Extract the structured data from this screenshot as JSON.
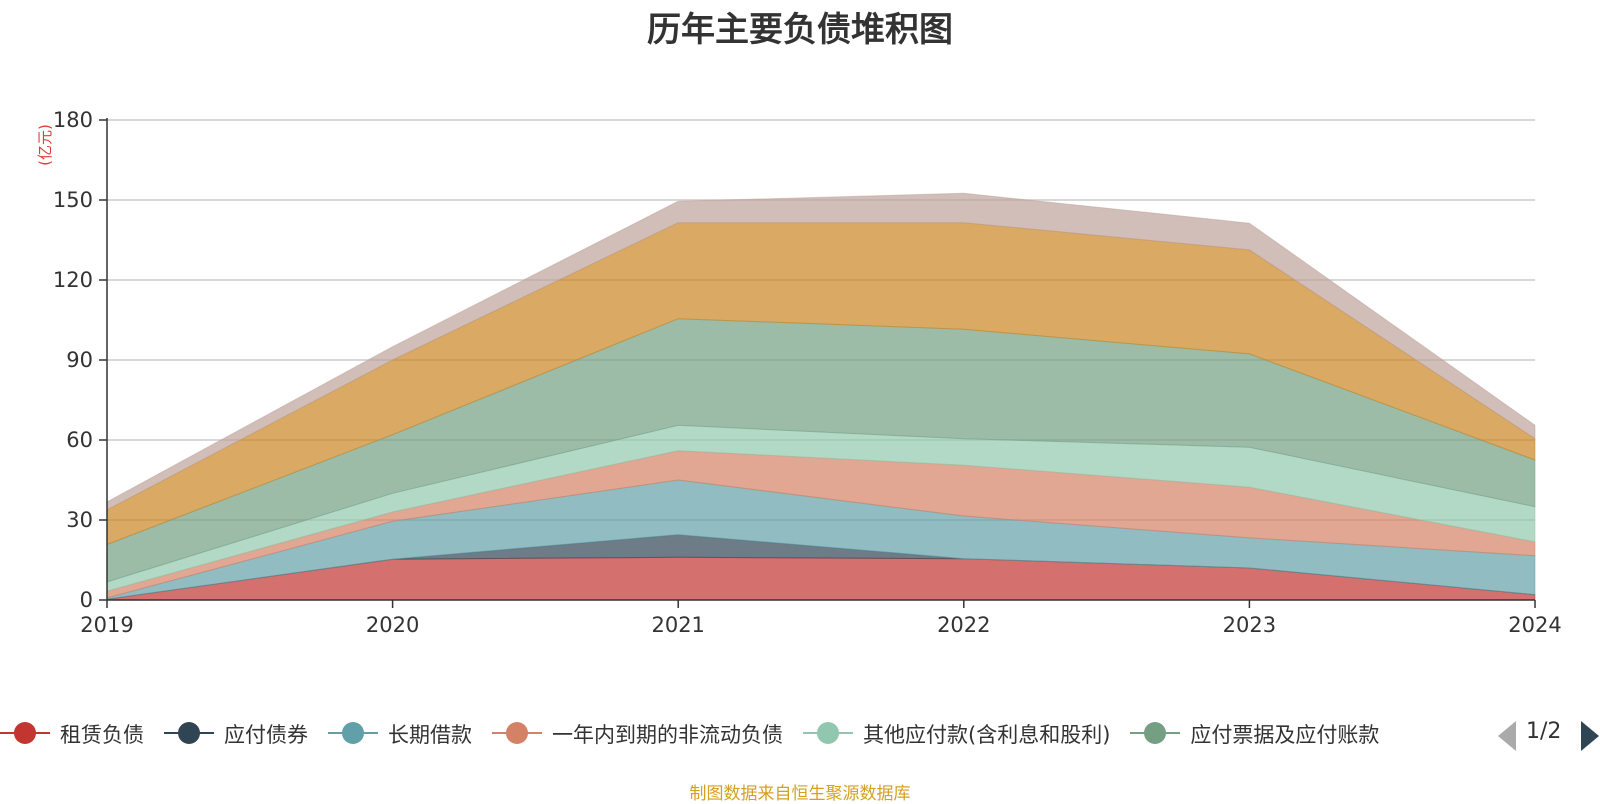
{
  "chart_data": {
    "type": "area",
    "stacked": true,
    "title": "历年主要负债堆积图",
    "unit": "(亿元)",
    "x": [
      "2019",
      "2020",
      "2021",
      "2022",
      "2023",
      "2024"
    ],
    "ylim": [
      0,
      180
    ],
    "yticks": [
      0,
      30,
      60,
      90,
      120,
      150,
      180
    ],
    "grid": true,
    "legend_position": "bottom",
    "series": [
      {
        "name": "租赁负债",
        "color": "#c23531",
        "values": [
          0.3,
          15.3,
          16.0,
          15.5,
          12.0,
          2.0
        ]
      },
      {
        "name": "应付债券",
        "color": "#2f4554",
        "values": [
          0.0,
          0.0,
          8.5,
          0.0,
          0.0,
          0.0
        ]
      },
      {
        "name": "长期借款",
        "color": "#61a0a8",
        "values": [
          0.5,
          14.2,
          20.5,
          16.0,
          11.3,
          14.6
        ]
      },
      {
        "name": "一年内到期的非流动负债",
        "color": "#d48265",
        "values": [
          2.5,
          3.5,
          11.0,
          19.0,
          19.0,
          5.2
        ]
      },
      {
        "name": "其他应付款(含利息和股利)",
        "color": "#91c7ae",
        "values": [
          3.5,
          7.0,
          9.5,
          10.0,
          15.0,
          13.2
        ]
      },
      {
        "name": "应付票据及应付账款",
        "color": "#749f83",
        "values": [
          14.0,
          22.0,
          40.0,
          41.0,
          35.0,
          17.5
        ]
      },
      {
        "name": "",
        "color": "#ca8622",
        "values": [
          13.0,
          28.0,
          36.0,
          40.0,
          39.0,
          8.0
        ]
      },
      {
        "name": "",
        "color": "#bda29a",
        "values": [
          3.0,
          5.0,
          8.0,
          11.0,
          10.0,
          5.0
        ]
      }
    ]
  },
  "legend": {
    "visible_count": 6,
    "page_text": "1/2"
  },
  "source_text": "制图数据来自恒生聚源数据库"
}
